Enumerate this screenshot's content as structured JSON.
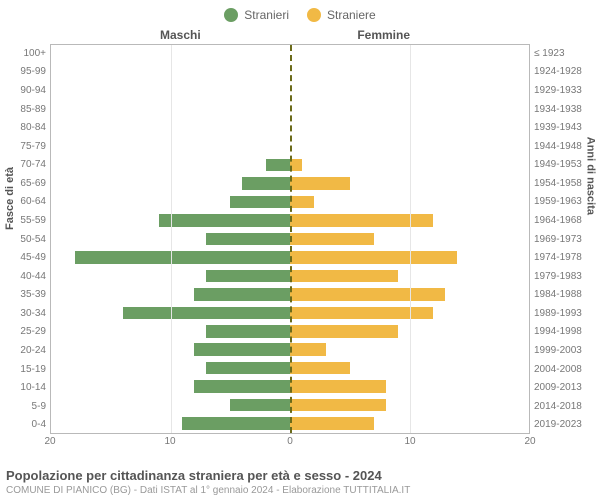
{
  "chart": {
    "type": "population-pyramid",
    "legend": {
      "male": {
        "label": "Stranieri",
        "color": "#6b9e63"
      },
      "female": {
        "label": "Straniere",
        "color": "#f1b945"
      }
    },
    "column_headers": {
      "left": "Maschi",
      "right": "Femmine"
    },
    "axis_titles": {
      "left": "Fasce di età",
      "right": "Anni di nascita"
    },
    "x_axis": {
      "max": 20,
      "ticks": [
        20,
        10,
        0,
        10,
        20
      ],
      "tick_labels": [
        "20",
        "10",
        "0",
        "10",
        "20"
      ]
    },
    "grid_color": "#e6e6e6",
    "centerline_color": "#6b6b1a",
    "border_color": "#b9b9b9",
    "background_color": "#ffffff",
    "label_fontsize": 10,
    "rows": [
      {
        "age": "100+",
        "birth": "≤ 1923",
        "male": 0,
        "female": 0
      },
      {
        "age": "95-99",
        "birth": "1924-1928",
        "male": 0,
        "female": 0
      },
      {
        "age": "90-94",
        "birth": "1929-1933",
        "male": 0,
        "female": 0
      },
      {
        "age": "85-89",
        "birth": "1934-1938",
        "male": 0,
        "female": 0
      },
      {
        "age": "80-84",
        "birth": "1939-1943",
        "male": 0,
        "female": 0
      },
      {
        "age": "75-79",
        "birth": "1944-1948",
        "male": 0,
        "female": 0
      },
      {
        "age": "70-74",
        "birth": "1949-1953",
        "male": 2,
        "female": 1
      },
      {
        "age": "65-69",
        "birth": "1954-1958",
        "male": 4,
        "female": 5
      },
      {
        "age": "60-64",
        "birth": "1959-1963",
        "male": 5,
        "female": 2
      },
      {
        "age": "55-59",
        "birth": "1964-1968",
        "male": 11,
        "female": 12
      },
      {
        "age": "50-54",
        "birth": "1969-1973",
        "male": 7,
        "female": 7
      },
      {
        "age": "45-49",
        "birth": "1974-1978",
        "male": 18,
        "female": 14
      },
      {
        "age": "40-44",
        "birth": "1979-1983",
        "male": 7,
        "female": 9
      },
      {
        "age": "35-39",
        "birth": "1984-1988",
        "male": 8,
        "female": 13
      },
      {
        "age": "30-34",
        "birth": "1989-1993",
        "male": 14,
        "female": 12
      },
      {
        "age": "25-29",
        "birth": "1994-1998",
        "male": 7,
        "female": 9
      },
      {
        "age": "20-24",
        "birth": "1999-2003",
        "male": 8,
        "female": 3
      },
      {
        "age": "15-19",
        "birth": "2004-2008",
        "male": 7,
        "female": 5
      },
      {
        "age": "10-14",
        "birth": "2009-2013",
        "male": 8,
        "female": 8
      },
      {
        "age": "5-9",
        "birth": "2014-2018",
        "male": 5,
        "female": 8
      },
      {
        "age": "0-4",
        "birth": "2019-2023",
        "male": 9,
        "female": 7
      }
    ]
  },
  "footer": {
    "title": "Popolazione per cittadinanza straniera per età e sesso - 2024",
    "subtitle": "COMUNE DI PIANICO (BG) - Dati ISTAT al 1° gennaio 2024 - Elaborazione TUTTITALIA.IT"
  }
}
